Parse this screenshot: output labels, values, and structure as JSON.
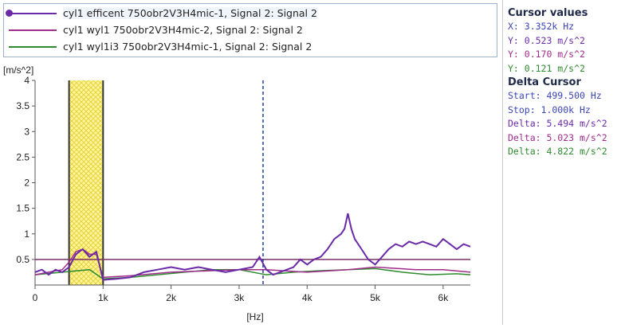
{
  "colors": {
    "series1": "#6a2aa8",
    "series2": "#a02c8c",
    "series3": "#2e8a2e",
    "cursor_x": "#1e3c9e",
    "band_fill": "#fff59a",
    "band_pattern": "#e6d340",
    "hline": "#7a3068"
  },
  "legend": {
    "items": [
      {
        "label": "cyl1 efficent  750obr2V3H4mic-1, Signal 2: Signal 2",
        "marker": "dot",
        "color_key": "series1"
      },
      {
        "label": "cyl1 wyl1 750obr2V3H4mic-2, Signal 2: Signal 2",
        "marker": "line",
        "color_key": "series2"
      },
      {
        "label": "cyl1 wyl1i3 750obr2V3H4mic-1, Signal 2: Signal 2",
        "marker": "line",
        "color_key": "series3"
      }
    ]
  },
  "chart_data": {
    "type": "line",
    "ylabel": "[m/s^2]",
    "xlabel": "[Hz]",
    "xlim": [
      0,
      6400
    ],
    "ylim": [
      0,
      4
    ],
    "yticks": [
      "0.5",
      "1",
      "1.5",
      "2",
      "2.5",
      "3",
      "3.5",
      "4"
    ],
    "yticks_values": [
      0.5,
      1,
      1.5,
      2,
      2.5,
      3,
      3.5,
      4
    ],
    "xticks": [
      "0",
      "1k",
      "2k",
      "3k",
      "4k",
      "5k",
      "6k"
    ],
    "xticks_values": [
      0,
      1000,
      2000,
      3000,
      4000,
      5000,
      6000
    ],
    "cursor_x": 3352,
    "delta_band": [
      499.5,
      1000
    ],
    "reference_line_y": 0.5,
    "series": [
      {
        "name": "cyl1 efficent  750obr2V3H4mic-1, Signal 2: Signal 2",
        "color_key": "series1",
        "x": [
          0,
          100,
          200,
          300,
          400,
          500,
          600,
          700,
          800,
          900,
          1000,
          1200,
          1400,
          1600,
          1800,
          2000,
          2200,
          2400,
          2600,
          2800,
          3000,
          3200,
          3300,
          3400,
          3500,
          3600,
          3800,
          3900,
          4000,
          4100,
          4200,
          4300,
          4400,
          4500,
          4550,
          4600,
          4650,
          4700,
          4800,
          4900,
          5000,
          5100,
          5200,
          5300,
          5400,
          5500,
          5600,
          5700,
          5800,
          5900,
          6000,
          6100,
          6200,
          6300,
          6400
        ],
        "y": [
          0.25,
          0.3,
          0.2,
          0.3,
          0.25,
          0.35,
          0.6,
          0.7,
          0.55,
          0.65,
          0.1,
          0.12,
          0.15,
          0.25,
          0.3,
          0.35,
          0.3,
          0.35,
          0.3,
          0.25,
          0.3,
          0.35,
          0.55,
          0.3,
          0.2,
          0.25,
          0.35,
          0.5,
          0.4,
          0.5,
          0.55,
          0.7,
          0.9,
          1.0,
          1.1,
          1.4,
          1.1,
          0.9,
          0.7,
          0.5,
          0.4,
          0.55,
          0.7,
          0.8,
          0.75,
          0.85,
          0.8,
          0.85,
          0.8,
          0.75,
          0.9,
          0.8,
          0.7,
          0.8,
          0.75
        ]
      },
      {
        "name": "cyl1 wyl1 750obr2V3H4mic-2, Signal 2: Signal 2",
        "color_key": "series2",
        "x": [
          0,
          200,
          400,
          500,
          600,
          700,
          800,
          900,
          1000,
          1400,
          2000,
          2600,
          3000,
          3400,
          4000,
          4600,
          5000,
          5600,
          6000,
          6400
        ],
        "y": [
          0.2,
          0.25,
          0.3,
          0.45,
          0.65,
          0.7,
          0.6,
          0.6,
          0.15,
          0.18,
          0.25,
          0.28,
          0.3,
          0.3,
          0.25,
          0.3,
          0.35,
          0.3,
          0.3,
          0.25
        ]
      },
      {
        "name": "cyl1 wyl1i3 750obr2V3H4mic-1, Signal 2: Signal 2",
        "color_key": "series3",
        "x": [
          0,
          400,
          800,
          1000,
          1400,
          1800,
          2200,
          2600,
          3000,
          3400,
          3800,
          4200,
          4600,
          5000,
          5400,
          5800,
          6200,
          6400
        ],
        "y": [
          0.2,
          0.25,
          0.3,
          0.12,
          0.15,
          0.2,
          0.25,
          0.3,
          0.3,
          0.2,
          0.25,
          0.28,
          0.3,
          0.32,
          0.25,
          0.2,
          0.22,
          0.2
        ]
      }
    ]
  },
  "cursor_panel": {
    "title": "Cursor values",
    "x": "X: 3.352k Hz",
    "y1": "Y: 0.523 m/s^2",
    "y2": "Y: 0.170 m/s^2",
    "y3": "Y: 0.121 m/s^2"
  },
  "delta_panel": {
    "title": "Delta Cursor",
    "start": "Start: 499.500 Hz",
    "stop": "Stop: 1.000k Hz",
    "d1": "Delta: 5.494 m/s^2",
    "d2": "Delta: 5.023 m/s^2",
    "d3": "Delta: 4.822 m/s^2"
  }
}
